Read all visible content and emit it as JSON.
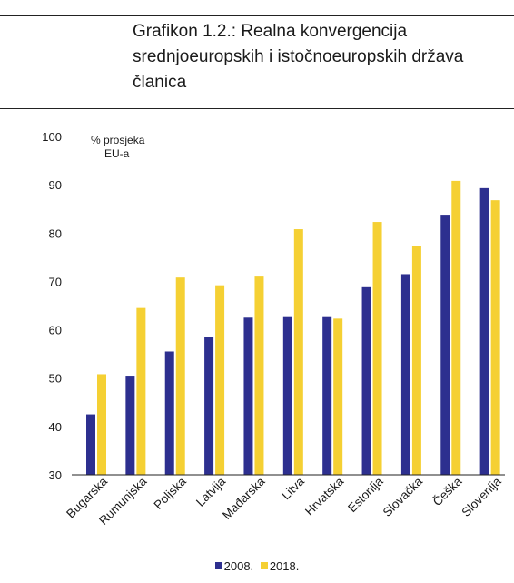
{
  "title": "Grafikon 1.2.:  Realna konvergencija srednjoeuropskih i istočnoeuropskih država članica",
  "colors": {
    "series_2008": "#2d2f8f",
    "series_2018": "#f5d033"
  },
  "chart_data": {
    "type": "bar",
    "title": "Grafikon 1.2.:  Realna konvergencija srednjoeuropskih i istočnoeuropskih država članica",
    "ylabel_line1": "% prosjeka",
    "ylabel_line2": "EU-a",
    "ylim": [
      30,
      100
    ],
    "yticks": [
      30,
      40,
      50,
      60,
      70,
      80,
      90,
      100
    ],
    "grid": false,
    "legend": "bottom",
    "categories": [
      "Bugarska",
      "Rumunjska",
      "Poljska",
      "Latvija",
      "Mađarska",
      "Litva",
      "Hrvatska",
      "Estonija",
      "Slovačka",
      "Češka",
      "Slovenija"
    ],
    "series": [
      {
        "name": "2008.",
        "values": [
          42.5,
          50.5,
          55.5,
          58.5,
          62.5,
          62.8,
          62.8,
          68.8,
          71.5,
          83.8,
          89.3
        ]
      },
      {
        "name": "2018.",
        "values": [
          50.8,
          64.5,
          70.8,
          69.2,
          71.0,
          80.8,
          62.3,
          82.3,
          77.3,
          90.8,
          86.8
        ]
      }
    ]
  }
}
